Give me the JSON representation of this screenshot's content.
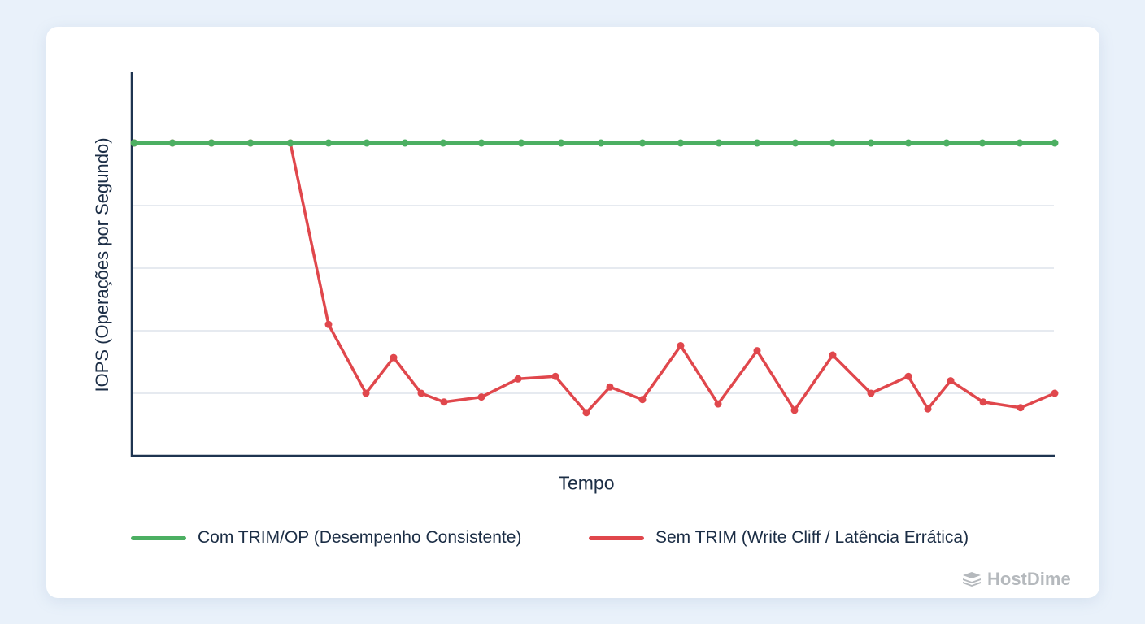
{
  "chart_data": {
    "type": "line",
    "title": "",
    "xlabel": "Tempo",
    "ylabel": "IOPS (Operações por Segundo)",
    "ylim": [
      0,
      5.5
    ],
    "grid": true,
    "legend_position": "bottom",
    "x": [
      1,
      2,
      3,
      4,
      5,
      6,
      7,
      8,
      9,
      10,
      11,
      12,
      13,
      14,
      15,
      16,
      17,
      18,
      19,
      20,
      21,
      22,
      23,
      24,
      25,
      26,
      27,
      28
    ],
    "series": [
      {
        "name": "Com TRIM/OP (Desempenho Consistente)",
        "color": "#4caf62",
        "values": [
          5,
          5,
          5,
          5,
          5,
          5,
          5,
          5,
          5,
          5,
          5,
          5,
          5,
          5,
          5,
          5,
          5,
          5,
          5,
          5,
          5,
          5,
          5,
          5,
          5,
          5,
          5,
          5
        ]
      },
      {
        "name": "Sem TRIM (Write Cliff / Latência Errática)",
        "color": "#e0474c",
        "values": [
          5,
          5,
          5,
          5,
          5,
          2.1,
          1.0,
          1.57,
          1.0,
          0.86,
          0.94,
          1.23,
          1.27,
          0.69,
          1.1,
          0.9,
          1.76,
          0.83,
          1.68,
          0.73,
          1.61,
          1.0,
          1.27,
          0.75,
          1.2,
          0.86,
          0.77,
          1.0
        ]
      }
    ]
  },
  "plot": {
    "x_axis_label": "Tempo",
    "y_axis_label": "IOPS (Operações por Segundo)"
  },
  "legend": {
    "items": [
      {
        "label": "Com TRIM/OP (Desempenho Consistente)",
        "color": "#4caf62"
      },
      {
        "label": "Sem TRIM (Write Cliff / Latência Errática)",
        "color": "#e0474c"
      }
    ]
  },
  "brand": {
    "name": "HostDime",
    "icon": "server-stack-icon"
  }
}
